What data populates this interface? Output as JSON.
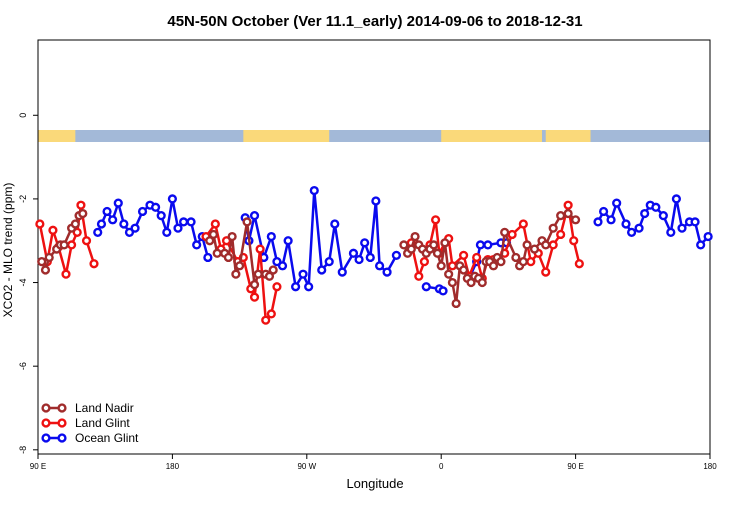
{
  "chart_data": {
    "type": "line",
    "title": "45N-50N October (Ver 11.1_early)   2014-09-06 to 2018-12-31",
    "xlabel": "Longitude",
    "ylabel": "XCO2 - MLO trend (ppm)",
    "xticks": [
      "90 E",
      "180",
      "90 W",
      "0",
      "90 E",
      "180"
    ],
    "yticks": [
      "0",
      "-2",
      "-4",
      "-6",
      "-8"
    ],
    "ylim": [
      -8.1,
      1.8
    ],
    "grid": false,
    "legend_position": "bottom-left",
    "land_ocean_strip": {
      "land_color": "#fad97a",
      "ocean_color": "#a3b9d8"
    },
    "series": [
      {
        "name": "Land Nadir",
        "color": "#a02c2c",
        "x": [
          1,
          2,
          3,
          5,
          6,
          7,
          9,
          10,
          11,
          12,
          46,
          47,
          48,
          50,
          51,
          52,
          53,
          54,
          56,
          58,
          59,
          61,
          62,
          63,
          98,
          99,
          100,
          101,
          102,
          103,
          104,
          105,
          106,
          107,
          108,
          109,
          110,
          111,
          112,
          113,
          114,
          115,
          116,
          117,
          118,
          119,
          120,
          121,
          122,
          123,
          124,
          125,
          128,
          129,
          130,
          131,
          133,
          135,
          136,
          138,
          140,
          142,
          144
        ],
        "y": [
          -3.5,
          -3.7,
          -3.4,
          -3.2,
          -3.1,
          -3.1,
          -2.7,
          -2.6,
          -2.4,
          -2.35,
          -3.0,
          -2.85,
          -3.3,
          -3.3,
          -3.4,
          -2.9,
          -3.8,
          -3.6,
          -2.55,
          -4.05,
          -3.8,
          -3.8,
          -3.85,
          -3.7,
          -3.1,
          -3.3,
          -3.2,
          -2.9,
          -3.1,
          -3.2,
          -3.3,
          -3.2,
          -3.1,
          -3.3,
          -3.6,
          -3.05,
          -3.8,
          -4.0,
          -4.5,
          -3.6,
          -3.7,
          -3.9,
          -4.0,
          -3.85,
          -3.9,
          -4.0,
          -3.5,
          -3.5,
          -3.6,
          -3.4,
          -3.5,
          -2.8,
          -3.4,
          -3.6,
          -3.5,
          -3.1,
          -3.2,
          -3.0,
          -3.1,
          -2.7,
          -2.4,
          -2.35,
          -2.5
        ]
      },
      {
        "name": "Land Glint",
        "color": "#ee1111",
        "x": [
          0.5,
          2.5,
          4,
          5.5,
          7.5,
          9,
          10.5,
          11.5,
          13,
          15,
          45,
          47.5,
          49,
          50.5,
          53.5,
          55,
          57,
          58,
          59.5,
          61,
          62.5,
          64,
          100,
          102,
          103.5,
          105,
          106.5,
          107.5,
          109,
          110,
          111,
          114,
          115.5,
          117.5,
          119,
          120.5,
          122,
          125,
          127,
          130,
          132,
          134,
          136,
          138,
          140,
          142,
          143.5,
          145
        ],
        "y": [
          -2.6,
          -3.5,
          -2.75,
          -3.15,
          -3.8,
          -3.1,
          -2.8,
          -2.15,
          -3.0,
          -3.55,
          -2.9,
          -2.6,
          -3.2,
          -3.0,
          -3.5,
          -3.4,
          -4.15,
          -4.35,
          -3.2,
          -4.9,
          -4.75,
          -4.1,
          -3.05,
          -3.85,
          -3.5,
          -3.1,
          -2.5,
          -3.3,
          -3.05,
          -2.95,
          -3.6,
          -3.35,
          -3.85,
          -3.4,
          -3.9,
          -3.45,
          -3.45,
          -3.3,
          -2.85,
          -2.6,
          -3.5,
          -3.3,
          -3.75,
          -3.1,
          -2.85,
          -2.15,
          -3.0,
          -3.55
        ]
      },
      {
        "name": "Ocean Glint",
        "color": "#0a0aee",
        "x": [
          16,
          17,
          18.5,
          20,
          21.5,
          23,
          24.5,
          26,
          28,
          30,
          31.5,
          33,
          34.5,
          36,
          37.5,
          39,
          41,
          42.5,
          44,
          45.5,
          55.5,
          56.5,
          58,
          60.5,
          62.5,
          64,
          65.5,
          67,
          69,
          71,
          72.5,
          74,
          76,
          78,
          79.5,
          81.5,
          84.5,
          86,
          87.5,
          89,
          90.5,
          91.5,
          93.5,
          96,
          104,
          107.5,
          108.5,
          115.5,
          117.5,
          118.5,
          120.5,
          124,
          125.5,
          150,
          151.5,
          153.5,
          155,
          157.5,
          159,
          161,
          162.5,
          164,
          165.5,
          167.5,
          169.5,
          171,
          172.5,
          174.5,
          176,
          177.5,
          179.5
        ],
        "y": [
          -2.8,
          -2.6,
          -2.3,
          -2.5,
          -2.1,
          -2.6,
          -2.8,
          -2.7,
          -2.3,
          -2.15,
          -2.2,
          -2.4,
          -2.8,
          -2.0,
          -2.7,
          -2.55,
          -2.55,
          -3.1,
          -2.9,
          -3.4,
          -2.45,
          -3.0,
          -2.4,
          -3.4,
          -2.9,
          -3.5,
          -3.6,
          -3.0,
          -4.1,
          -3.8,
          -4.1,
          -1.8,
          -3.7,
          -3.5,
          -2.6,
          -3.75,
          -3.3,
          -3.45,
          -3.05,
          -3.4,
          -2.05,
          -3.6,
          -3.75,
          -3.35,
          -4.1,
          -4.15,
          -4.2,
          -3.9,
          -3.5,
          -3.1,
          -3.1,
          -3.05,
          -3.05,
          -2.55,
          -2.3,
          -2.5,
          -2.1,
          -2.6,
          -2.8,
          -2.7,
          -2.35,
          -2.15,
          -2.2,
          -2.4,
          -2.8,
          -2.0,
          -2.7,
          -2.55,
          -2.55,
          -3.1,
          -2.9
        ]
      }
    ]
  }
}
